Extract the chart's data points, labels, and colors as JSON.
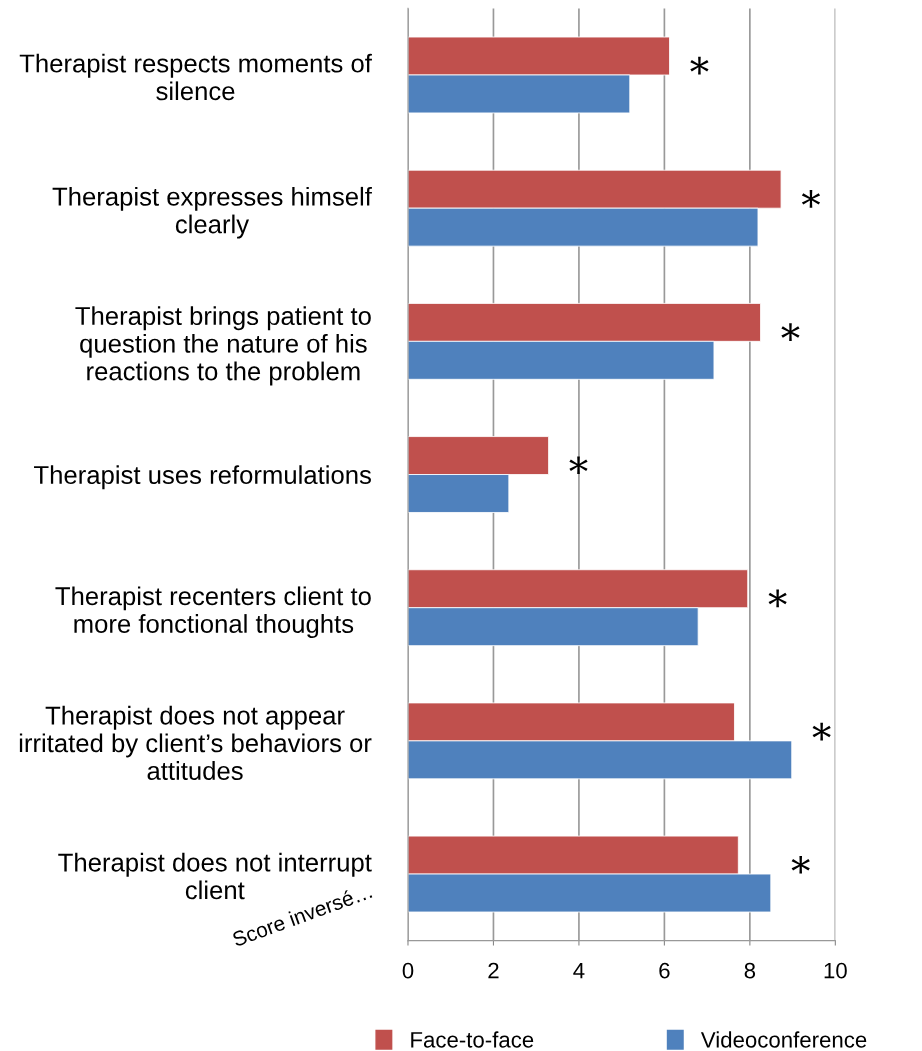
{
  "chart_data": {
    "type": "bar",
    "orientation": "horizontal",
    "categories": [
      "Therapist respects moments of silence",
      "Therapist expresses himself clearly",
      "Therapist brings patient to question the nature of his reactions to the problem",
      "Therapist uses reformulations",
      "Therapist recenters client to more fonctional thoughts",
      "Therapist does not appear irritated by client’s behaviors or attitudes",
      "Therapist does not interrupt client"
    ],
    "series": [
      {
        "name": "Face-to-face",
        "color": "#c0504d",
        "values": [
          6.12,
          8.73,
          8.25,
          3.29,
          7.95,
          7.64,
          7.73
        ]
      },
      {
        "name": "Videoconference",
        "color": "#4f81bd",
        "values": [
          5.19,
          8.19,
          7.16,
          2.36,
          6.79,
          8.98,
          8.49
        ]
      }
    ],
    "xlim": [
      0,
      10
    ],
    "xticks": [
      0,
      2,
      4,
      6,
      8,
      10
    ],
    "grid": "x",
    "legend": "bottom",
    "annotations": [
      "*",
      "*",
      "*",
      "*",
      "*",
      "*",
      "*",
      "Score inversé…"
    ]
  }
}
